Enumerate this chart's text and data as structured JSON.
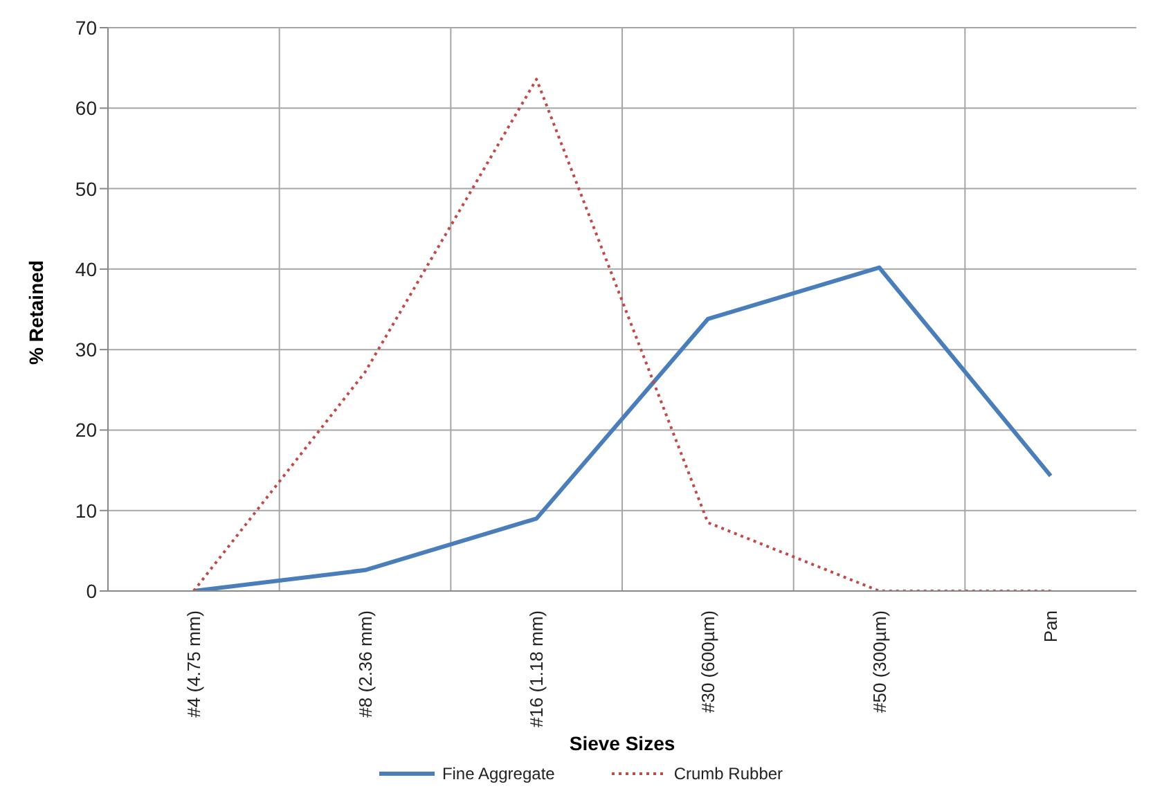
{
  "chart_data": {
    "type": "line",
    "xlabel": "Sieve Sizes",
    "ylabel": "% Retained",
    "categories": [
      "#4 (4.75  mm)",
      "#8 (2.36 mm)",
      "#16 (1.18 mm)",
      "#30 (600µm)",
      "#50 (300µm)",
      "Pan"
    ],
    "series": [
      {
        "name": "Fine Aggregate",
        "color": "#4a7ebb",
        "line_style": "solid",
        "values": [
          0,
          2.6,
          9.0,
          33.8,
          40.2,
          14.3
        ]
      },
      {
        "name": "Crumb Rubber",
        "color": "#be4b48",
        "line_style": "dotted",
        "values": [
          0,
          27.2,
          63.6,
          8.5,
          0,
          0
        ]
      }
    ],
    "ylim": [
      0,
      70
    ],
    "yticks": [
      0,
      10,
      20,
      30,
      40,
      50,
      60,
      70
    ],
    "grid": true,
    "legend": "bottom",
    "marker": "none"
  }
}
